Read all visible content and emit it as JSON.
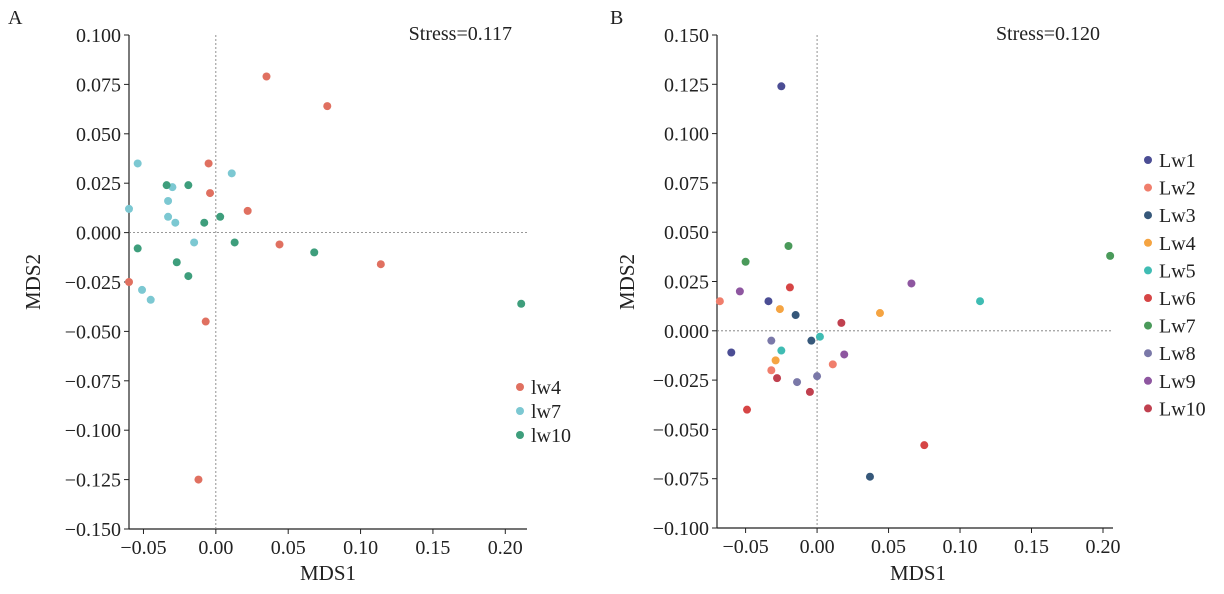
{
  "chart_data": [
    {
      "panel_label": "A",
      "type": "scatter",
      "stress_label": "Stress=0.117",
      "xlabel": "MDS1",
      "ylabel": "MDS2",
      "xlim": [
        -0.06,
        0.215
      ],
      "ylim": [
        -0.15,
        0.1
      ],
      "xticks": [
        -0.05,
        0.0,
        0.05,
        0.1,
        0.15,
        0.2
      ],
      "xtick_labels": [
        "−0.05",
        "0.00",
        "0.05",
        "0.10",
        "0.15",
        "0.20"
      ],
      "yticks": [
        0.1,
        0.075,
        0.05,
        0.025,
        0.0,
        -0.025,
        -0.05,
        -0.075,
        -0.1,
        -0.125,
        -0.15
      ],
      "ytick_labels": [
        "0.100",
        "0.075",
        "0.050",
        "0.025",
        "0.000",
        "−0.025",
        "−0.050",
        "−0.075",
        "−0.100",
        "−0.125",
        "−0.150"
      ],
      "legend_position": "bottom-right",
      "series": [
        {
          "name": "lw4",
          "color": "#e07060",
          "points": [
            [
              0.035,
              0.079
            ],
            [
              0.077,
              0.064
            ],
            [
              -0.005,
              0.035
            ],
            [
              -0.004,
              0.02
            ],
            [
              0.022,
              0.011
            ],
            [
              0.044,
              -0.006
            ],
            [
              0.114,
              -0.016
            ],
            [
              -0.06,
              -0.025
            ],
            [
              -0.007,
              -0.045
            ],
            [
              -0.012,
              -0.125
            ]
          ]
        },
        {
          "name": "lw7",
          "color": "#7cc8d2",
          "points": [
            [
              -0.054,
              0.035
            ],
            [
              0.011,
              0.03
            ],
            [
              -0.03,
              0.023
            ],
            [
              -0.033,
              0.016
            ],
            [
              -0.06,
              0.012
            ],
            [
              -0.033,
              0.008
            ],
            [
              -0.028,
              0.005
            ],
            [
              -0.015,
              -0.005
            ],
            [
              -0.051,
              -0.029
            ],
            [
              -0.045,
              -0.034
            ]
          ]
        },
        {
          "name": "lw10",
          "color": "#3e9e7c",
          "points": [
            [
              -0.034,
              0.024
            ],
            [
              -0.019,
              0.024
            ],
            [
              0.003,
              0.008
            ],
            [
              -0.008,
              0.005
            ],
            [
              0.013,
              -0.005
            ],
            [
              -0.054,
              -0.008
            ],
            [
              0.068,
              -0.01
            ],
            [
              -0.027,
              -0.015
            ],
            [
              -0.019,
              -0.022
            ],
            [
              0.211,
              -0.036
            ]
          ]
        }
      ]
    },
    {
      "panel_label": "B",
      "type": "scatter",
      "stress_label": "Stress=0.120",
      "xlabel": "MDS1",
      "ylabel": "MDS2",
      "xlim": [
        -0.07,
        0.207
      ],
      "ylim": [
        -0.1,
        0.15
      ],
      "xticks": [
        -0.05,
        0.0,
        0.05,
        0.1,
        0.15,
        0.2
      ],
      "xtick_labels": [
        "−0.05",
        "0.00",
        "0.05",
        "0.10",
        "0.15",
        "0.20"
      ],
      "yticks": [
        0.15,
        0.125,
        0.1,
        0.075,
        0.05,
        0.025,
        0.0,
        -0.025,
        -0.05,
        -0.075,
        -0.1
      ],
      "ytick_labels": [
        "0.150",
        "0.125",
        "0.100",
        "0.075",
        "0.050",
        "0.025",
        "0.000",
        "−0.025",
        "−0.050",
        "−0.075",
        "−0.100"
      ],
      "legend_position": "right",
      "series": [
        {
          "name": "Lw1",
          "color": "#4b4d94",
          "points": [
            [
              -0.025,
              0.124
            ],
            [
              -0.034,
              0.015
            ],
            [
              -0.06,
              -0.011
            ]
          ]
        },
        {
          "name": "Lw2",
          "color": "#f07e6c",
          "points": [
            [
              -0.068,
              0.015
            ],
            [
              0.011,
              -0.017
            ],
            [
              -0.032,
              -0.02
            ]
          ]
        },
        {
          "name": "Lw3",
          "color": "#36587a",
          "points": [
            [
              -0.015,
              0.008
            ],
            [
              -0.004,
              -0.005
            ],
            [
              0.037,
              -0.074
            ]
          ]
        },
        {
          "name": "Lw4",
          "color": "#f5a442",
          "points": [
            [
              -0.026,
              0.011
            ],
            [
              0.044,
              0.009
            ],
            [
              -0.029,
              -0.015
            ]
          ]
        },
        {
          "name": "Lw5",
          "color": "#3fbcb3",
          "points": [
            [
              0.114,
              0.015
            ],
            [
              0.002,
              -0.003
            ],
            [
              -0.025,
              -0.01
            ]
          ]
        },
        {
          "name": "Lw6",
          "color": "#d64545",
          "points": [
            [
              -0.019,
              0.022
            ],
            [
              0.075,
              -0.058
            ],
            [
              -0.049,
              -0.04
            ]
          ]
        },
        {
          "name": "Lw7",
          "color": "#4a9a5a",
          "points": [
            [
              -0.02,
              0.043
            ],
            [
              -0.05,
              0.035
            ],
            [
              0.205,
              0.038
            ]
          ]
        },
        {
          "name": "Lw8",
          "color": "#7a78a8",
          "points": [
            [
              -0.032,
              -0.005
            ],
            [
              -0.014,
              -0.026
            ],
            [
              0.0,
              -0.023
            ]
          ]
        },
        {
          "name": "Lw9",
          "color": "#8e56a0",
          "points": [
            [
              0.066,
              0.024
            ],
            [
              -0.054,
              0.02
            ],
            [
              0.019,
              -0.012
            ]
          ]
        },
        {
          "name": "Lw10",
          "color": "#c0404f",
          "points": [
            [
              0.017,
              0.004
            ],
            [
              -0.028,
              -0.024
            ],
            [
              -0.005,
              -0.031
            ]
          ]
        }
      ]
    }
  ]
}
